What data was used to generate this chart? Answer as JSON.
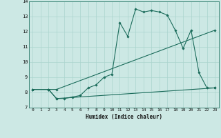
{
  "xlabel": "Humidex (Indice chaleur)",
  "ylabel": "",
  "background_color": "#cce8e4",
  "grid_color": "#aad4ce",
  "line_color": "#1a6b5a",
  "xlim": [
    -0.5,
    23.5
  ],
  "ylim": [
    7,
    14
  ],
  "xticks": [
    0,
    1,
    2,
    3,
    4,
    5,
    6,
    7,
    8,
    9,
    10,
    11,
    12,
    13,
    14,
    15,
    16,
    17,
    18,
    19,
    20,
    21,
    22,
    23
  ],
  "yticks": [
    7,
    8,
    9,
    10,
    11,
    12,
    13,
    14
  ],
  "line1_x": [
    0,
    2,
    3,
    4,
    5,
    6,
    7,
    8,
    9,
    10,
    11,
    12,
    13,
    14,
    15,
    16,
    17,
    18,
    19,
    20,
    21,
    22,
    23
  ],
  "line1_y": [
    8.2,
    8.2,
    7.6,
    7.6,
    7.7,
    7.8,
    8.3,
    8.5,
    9.0,
    9.2,
    12.6,
    11.7,
    13.5,
    13.3,
    13.4,
    13.3,
    13.1,
    12.1,
    10.9,
    12.1,
    9.3,
    8.3,
    8.3
  ],
  "line2_x": [
    0,
    2,
    3,
    23
  ],
  "line2_y": [
    8.2,
    8.2,
    7.6,
    8.3
  ],
  "line3_x": [
    0,
    2,
    3,
    23
  ],
  "line3_y": [
    8.2,
    8.2,
    8.2,
    12.1
  ]
}
